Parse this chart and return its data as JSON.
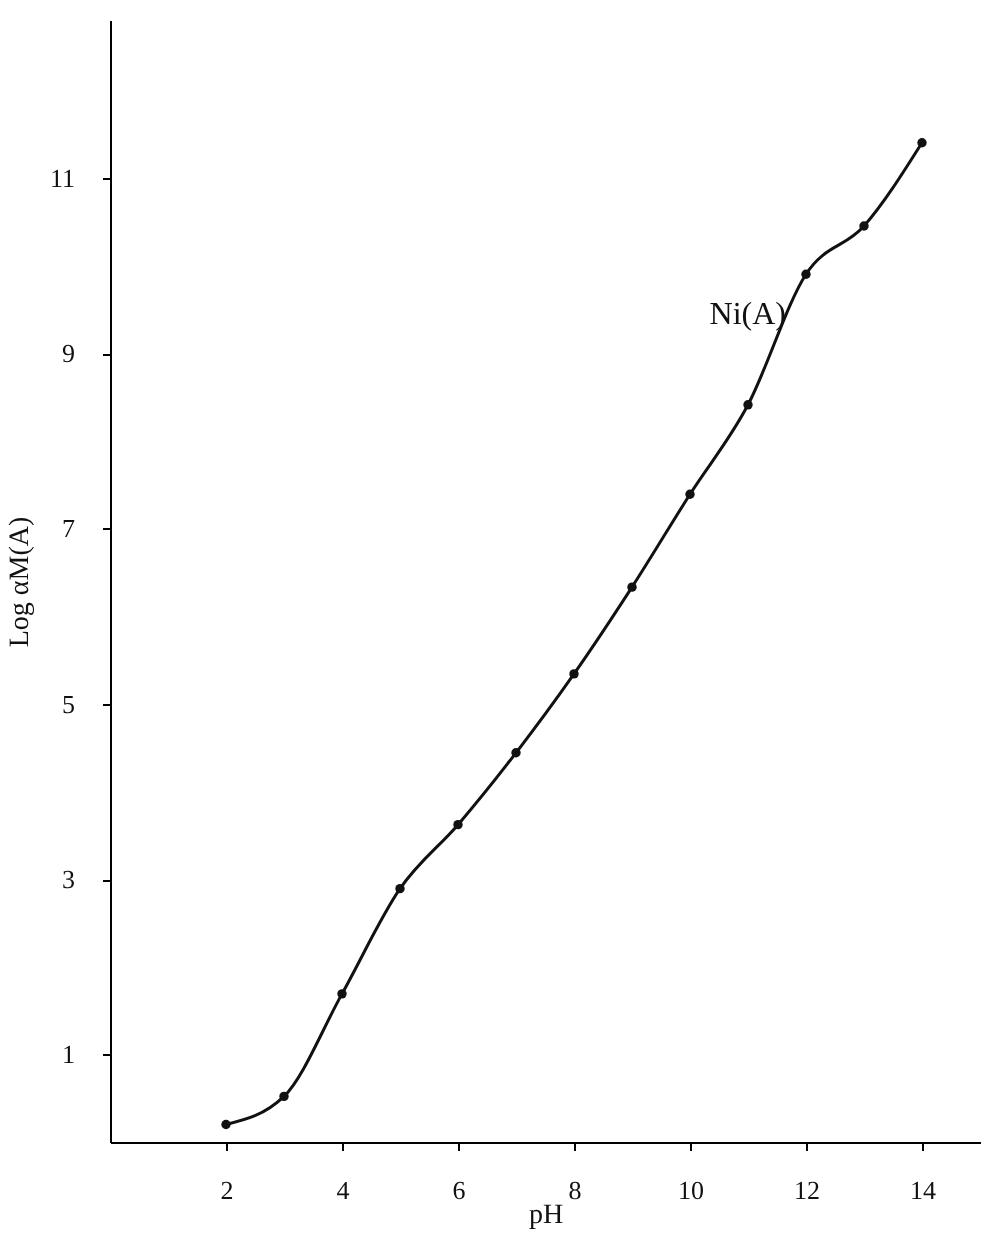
{
  "chart_data": {
    "type": "line",
    "xlabel": "pH",
    "ylabel": "Log αM(A)",
    "x": [
      2,
      3,
      4,
      5,
      6,
      7,
      8,
      9,
      10,
      11,
      12,
      13,
      14
    ],
    "series": [
      {
        "name": "Ni(A)",
        "color": "#111111",
        "values": [
          0.2,
          0.52,
          1.69,
          2.89,
          3.62,
          4.44,
          5.34,
          6.33,
          7.39,
          8.41,
          9.9,
          10.45,
          11.4
        ]
      }
    ],
    "xlim": [
      0,
      15
    ],
    "ylim": [
      0,
      12.8
    ],
    "xticks": [
      2,
      4,
      6,
      8,
      10,
      12,
      14
    ],
    "yticks": [
      1,
      3,
      5,
      7,
      9,
      11
    ],
    "grid": false,
    "marker": "circle",
    "line_style": "solid"
  }
}
